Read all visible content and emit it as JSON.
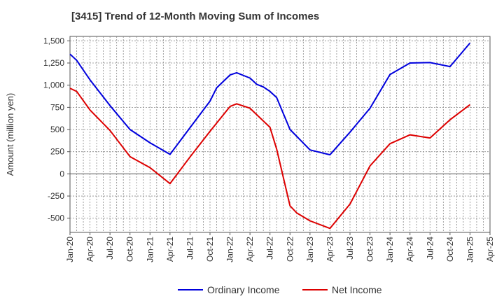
{
  "chart_data": {
    "type": "line",
    "title": "[3415]  Trend of 12-Month Moving Sum of Incomes",
    "ylabel": "Amount (million yen)",
    "xlabel": "",
    "ylim": [
      -660,
      1550
    ],
    "yticks": [
      1500,
      1250,
      1000,
      750,
      500,
      250,
      0,
      -250,
      -500
    ],
    "ytick_labels": [
      "1,500",
      "1,250",
      "1,000",
      "750",
      "500",
      "250",
      "0",
      "-250",
      "-500"
    ],
    "x_categories": [
      "Jan-20",
      "Apr-20",
      "Jul-20",
      "Oct-20",
      "Jan-21",
      "Apr-21",
      "Jul-21",
      "Oct-21",
      "Jan-22",
      "Apr-22",
      "Jul-22",
      "Oct-22",
      "Jan-23",
      "Apr-23",
      "Jul-23",
      "Oct-23",
      "Jan-24",
      "Apr-24",
      "Jul-24",
      "Oct-24",
      "Jan-25",
      "Apr-25"
    ],
    "grid": true,
    "legend_position": "bottom-center",
    "series": [
      {
        "name": "Ordinary Income",
        "color": "#0000dd",
        "x": [
          0,
          1,
          3,
          6,
          9,
          12,
          15,
          18,
          21,
          22,
          24,
          25,
          27,
          28,
          29,
          30,
          31,
          33,
          36,
          39,
          42,
          45,
          48,
          51,
          54,
          57,
          60
        ],
        "values": [
          1350,
          1280,
          1060,
          770,
          500,
          350,
          220,
          520,
          820,
          970,
          1115,
          1140,
          1080,
          1010,
          980,
          930,
          860,
          500,
          270,
          215,
          470,
          740,
          1120,
          1250,
          1255,
          1210,
          1475
        ]
      },
      {
        "name": "Net Income",
        "color": "#dd0000",
        "x": [
          0,
          1,
          3,
          6,
          9,
          12,
          15,
          18,
          21,
          24,
          25,
          27,
          30,
          31,
          33,
          34,
          36,
          39,
          42,
          45,
          48,
          51,
          54,
          57,
          60
        ],
        "values": [
          965,
          930,
          720,
          490,
          195,
          70,
          -110,
          190,
          480,
          760,
          790,
          740,
          525,
          280,
          -360,
          -440,
          -530,
          -615,
          -340,
          90,
          340,
          440,
          405,
          610,
          780
        ]
      }
    ]
  }
}
